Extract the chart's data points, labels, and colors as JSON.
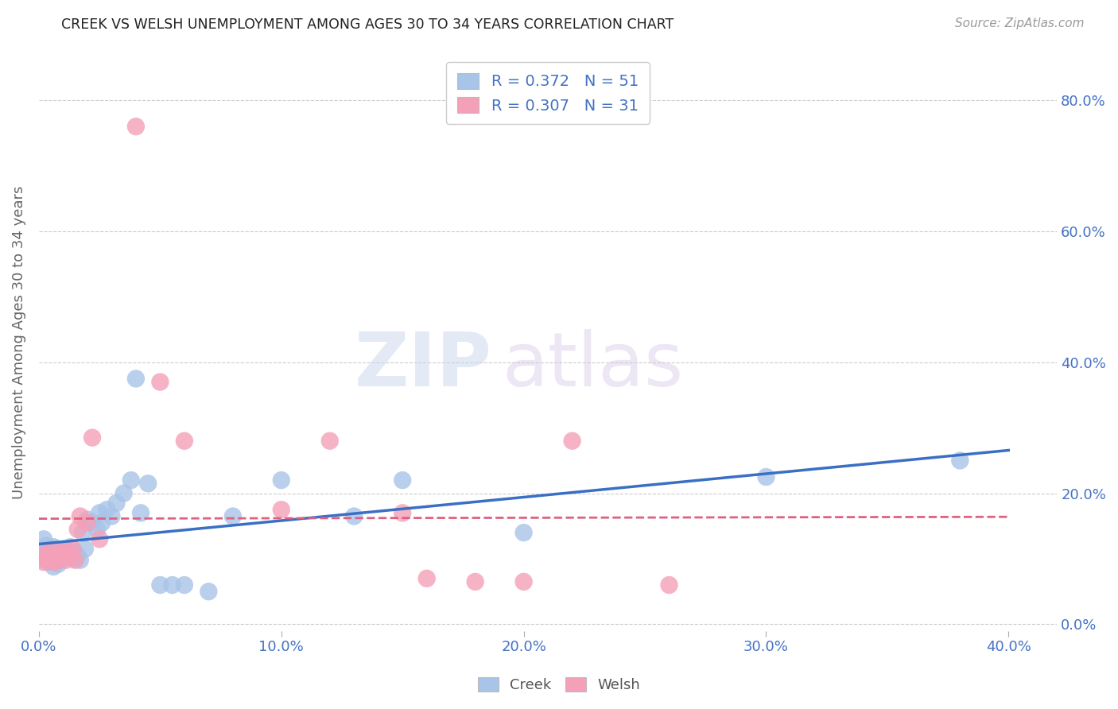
{
  "title": "CREEK VS WELSH UNEMPLOYMENT AMONG AGES 30 TO 34 YEARS CORRELATION CHART",
  "source": "Source: ZipAtlas.com",
  "ylabel": "Unemployment Among Ages 30 to 34 years",
  "background_color": "#ffffff",
  "grid_color": "#cccccc",
  "creek_color": "#a8c4e8",
  "welsh_color": "#f4a0b8",
  "creek_line_color": "#3a6fc4",
  "welsh_line_color": "#e06080",
  "creek_R": 0.372,
  "creek_N": 51,
  "welsh_R": 0.307,
  "welsh_N": 31,
  "xmin": 0.0,
  "xmax": 0.42,
  "ymin": -0.01,
  "ymax": 0.87,
  "xticks": [
    0.0,
    0.1,
    0.2,
    0.3,
    0.4
  ],
  "yticks": [
    0.0,
    0.2,
    0.4,
    0.6,
    0.8
  ],
  "creek_x": [
    0.001,
    0.002,
    0.002,
    0.003,
    0.003,
    0.004,
    0.004,
    0.005,
    0.005,
    0.006,
    0.006,
    0.007,
    0.007,
    0.008,
    0.008,
    0.009,
    0.01,
    0.01,
    0.011,
    0.012,
    0.013,
    0.014,
    0.015,
    0.016,
    0.017,
    0.018,
    0.019,
    0.02,
    0.022,
    0.024,
    0.025,
    0.026,
    0.028,
    0.03,
    0.032,
    0.035,
    0.038,
    0.04,
    0.042,
    0.045,
    0.05,
    0.055,
    0.06,
    0.07,
    0.08,
    0.1,
    0.13,
    0.15,
    0.2,
    0.3,
    0.38
  ],
  "creek_y": [
    0.115,
    0.105,
    0.13,
    0.1,
    0.12,
    0.108,
    0.095,
    0.112,
    0.098,
    0.118,
    0.088,
    0.105,
    0.115,
    0.092,
    0.11,
    0.1,
    0.105,
    0.115,
    0.108,
    0.112,
    0.118,
    0.1,
    0.108,
    0.105,
    0.098,
    0.14,
    0.115,
    0.16,
    0.155,
    0.145,
    0.17,
    0.155,
    0.175,
    0.165,
    0.185,
    0.2,
    0.22,
    0.375,
    0.17,
    0.215,
    0.06,
    0.06,
    0.06,
    0.05,
    0.165,
    0.22,
    0.165,
    0.22,
    0.14,
    0.225,
    0.25
  ],
  "welsh_x": [
    0.001,
    0.002,
    0.003,
    0.004,
    0.005,
    0.006,
    0.007,
    0.008,
    0.009,
    0.01,
    0.011,
    0.012,
    0.013,
    0.014,
    0.015,
    0.016,
    0.017,
    0.02,
    0.022,
    0.025,
    0.04,
    0.05,
    0.06,
    0.1,
    0.12,
    0.15,
    0.16,
    0.18,
    0.2,
    0.22,
    0.26
  ],
  "welsh_y": [
    0.1,
    0.095,
    0.108,
    0.1,
    0.112,
    0.095,
    0.105,
    0.098,
    0.11,
    0.105,
    0.098,
    0.112,
    0.105,
    0.115,
    0.098,
    0.145,
    0.165,
    0.155,
    0.285,
    0.13,
    0.76,
    0.37,
    0.28,
    0.175,
    0.28,
    0.17,
    0.07,
    0.065,
    0.065,
    0.28,
    0.06
  ],
  "watermark_zip": "ZIP",
  "watermark_atlas": "atlas",
  "title_color": "#222222",
  "axis_label_color": "#666666",
  "tick_color": "#4472c4",
  "legend_text_color": "#4472c4",
  "xtick_labels": [
    "0.0%",
    "10.0%",
    "20.0%",
    "30.0%",
    "40.0%"
  ],
  "ytick_labels": [
    "0.0%",
    "20.0%",
    "40.0%",
    "60.0%",
    "80.0%"
  ]
}
